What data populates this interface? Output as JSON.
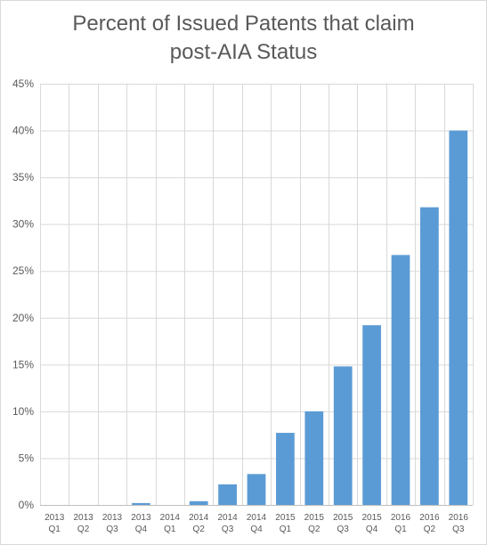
{
  "chart_data": {
    "type": "bar",
    "title_lines": [
      "Percent of Issued Patents that claim",
      "post-AIA Status"
    ],
    "title": "Percent of Issued Patents that claim post-AIA Status",
    "xlabel": "",
    "ylabel": "",
    "ylim": [
      0,
      45
    ],
    "yticks": [
      0,
      5,
      10,
      15,
      20,
      25,
      30,
      35,
      40,
      45
    ],
    "ytick_labels": [
      "0%",
      "5%",
      "10%",
      "15%",
      "20%",
      "25%",
      "30%",
      "35%",
      "40%",
      "45%"
    ],
    "categories": [
      [
        "2013",
        "Q1"
      ],
      [
        "2013",
        "Q2"
      ],
      [
        "2013",
        "Q3"
      ],
      [
        "2013",
        "Q4"
      ],
      [
        "2014",
        "Q1"
      ],
      [
        "2014",
        "Q2"
      ],
      [
        "2014",
        "Q3"
      ],
      [
        "2014",
        "Q4"
      ],
      [
        "2015",
        "Q1"
      ],
      [
        "2015",
        "Q2"
      ],
      [
        "2015",
        "Q3"
      ],
      [
        "2015",
        "Q4"
      ],
      [
        "2016",
        "Q1"
      ],
      [
        "2016",
        "Q2"
      ],
      [
        "2016",
        "Q3"
      ]
    ],
    "values": [
      0,
      0,
      0,
      0.2,
      0,
      0.4,
      2.2,
      3.3,
      7.7,
      10.0,
      14.8,
      19.2,
      26.7,
      31.8,
      40.0
    ],
    "bar_color": "#5b9bd5",
    "grid": true,
    "legend": "none"
  }
}
